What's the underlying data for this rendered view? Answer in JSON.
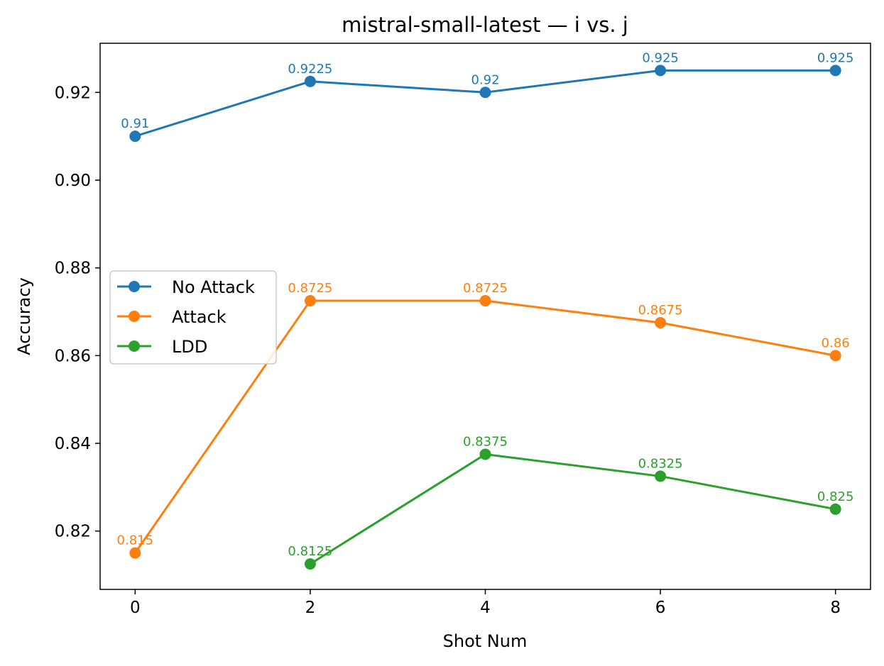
{
  "chart_data": {
    "type": "line",
    "title": "mistral-small-latest — i vs. j",
    "xlabel": "Shot Num",
    "ylabel": "Accuracy",
    "xlim": [
      -0.4,
      8.4
    ],
    "ylim": [
      0.8067,
      0.9312
    ],
    "xticks": [
      0,
      2,
      4,
      6,
      8
    ],
    "xtick_labels": [
      "0",
      "2",
      "4",
      "6",
      "8"
    ],
    "yticks": [
      0.82,
      0.84,
      0.86,
      0.88,
      0.9,
      0.92
    ],
    "ytick_labels": [
      "0.82",
      "0.84",
      "0.86",
      "0.88",
      "0.90",
      "0.92"
    ],
    "legend": {
      "position": "center-left"
    },
    "series": [
      {
        "name": "No Attack",
        "color": "#1f77b4",
        "x": [
          0,
          2,
          4,
          6,
          8
        ],
        "values": [
          0.91,
          0.9225,
          0.92,
          0.925,
          0.925
        ],
        "labels": [
          "0.91",
          "0.9225",
          "0.92",
          "0.925",
          "0.925"
        ]
      },
      {
        "name": "Attack",
        "color": "#ff7f0e",
        "x": [
          0,
          2,
          4,
          6,
          8
        ],
        "values": [
          0.815,
          0.8725,
          0.8725,
          0.8675,
          0.86
        ],
        "labels": [
          "0.815",
          "0.8725",
          "0.8725",
          "0.8675",
          "0.86"
        ]
      },
      {
        "name": "LDD",
        "color": "#2ca02c",
        "x": [
          2,
          4,
          6,
          8
        ],
        "values": [
          0.8125,
          0.8375,
          0.8325,
          0.825
        ],
        "labels": [
          "0.8125",
          "0.8375",
          "0.8325",
          "0.825"
        ]
      }
    ]
  }
}
